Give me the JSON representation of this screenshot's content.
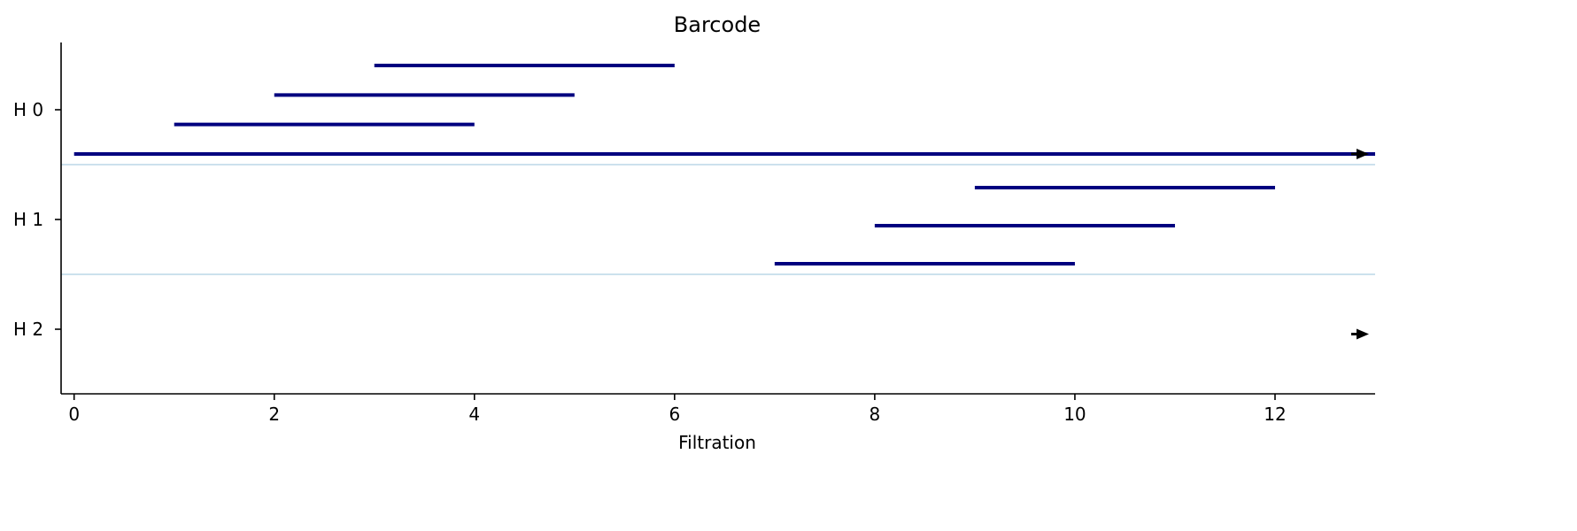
{
  "chart_data": {
    "type": "barcode",
    "title": "Barcode",
    "xlabel": "Filtration",
    "xlim": [
      -0.13,
      13.0
    ],
    "x_ticks": [
      "0",
      "2",
      "4",
      "6",
      "8",
      "10",
      "12"
    ],
    "x_tick_values": [
      0,
      2,
      4,
      6,
      8,
      10,
      12
    ],
    "groups": [
      {
        "name": "H 0",
        "bars": [
          {
            "birth": 0,
            "death": null
          },
          {
            "birth": 1,
            "death": 4
          },
          {
            "birth": 2,
            "death": 5
          },
          {
            "birth": 3,
            "death": 6
          }
        ]
      },
      {
        "name": "H 1",
        "bars": [
          {
            "birth": 7,
            "death": 10
          },
          {
            "birth": 8,
            "death": 11
          },
          {
            "birth": 9,
            "death": 12
          }
        ]
      },
      {
        "name": "H 2",
        "bars": [
          {
            "birth": 13,
            "death": null
          }
        ]
      }
    ],
    "infinite_marker": "arrow",
    "bar_color": "#00007f",
    "arrow_color": "#000000",
    "separator_color": "#aecfe2",
    "grid": false
  }
}
